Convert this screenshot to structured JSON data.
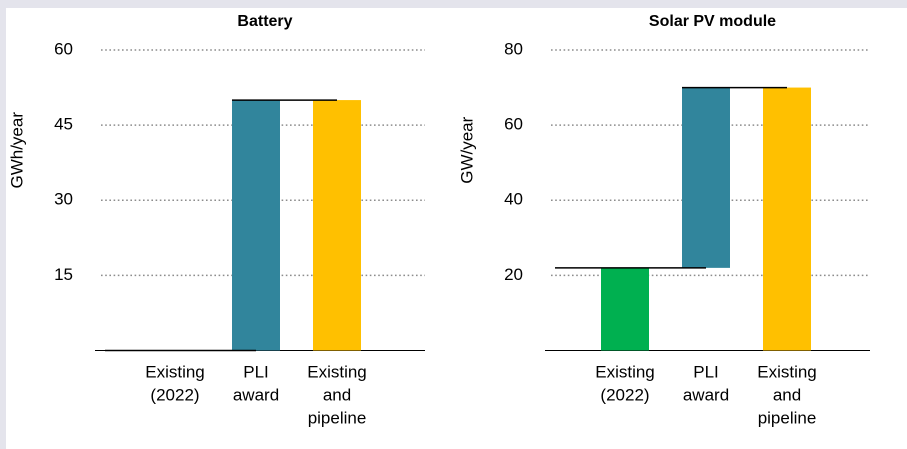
{
  "chart_data": [
    {
      "type": "waterfall",
      "title": "Battery",
      "y_label": "GWh/year",
      "categories": [
        [
          "Existing",
          "(2022)"
        ],
        [
          "PLI",
          "award"
        ],
        [
          "Existing",
          "and",
          "pipeline"
        ]
      ],
      "values": [
        0,
        50,
        50
      ],
      "totals": [
        false,
        false,
        true
      ],
      "colors": [
        "#00b050",
        "#31859c",
        "#ffc000"
      ],
      "ylim": [
        0,
        60
      ],
      "yticks": [
        15,
        30,
        45,
        60
      ],
      "grid": true
    },
    {
      "type": "waterfall",
      "title": "Solar PV module",
      "y_label": "GW/year",
      "categories": [
        [
          "Existing",
          "(2022)"
        ],
        [
          "PLI",
          "award"
        ],
        [
          "Existing",
          "and",
          "pipeline"
        ]
      ],
      "values": [
        22,
        48,
        70
      ],
      "totals": [
        false,
        false,
        true
      ],
      "colors": [
        "#00b050",
        "#31859c",
        "#ffc000"
      ],
      "ylim": [
        0,
        80
      ],
      "yticks": [
        20,
        40,
        60,
        80
      ],
      "grid": true
    }
  ]
}
